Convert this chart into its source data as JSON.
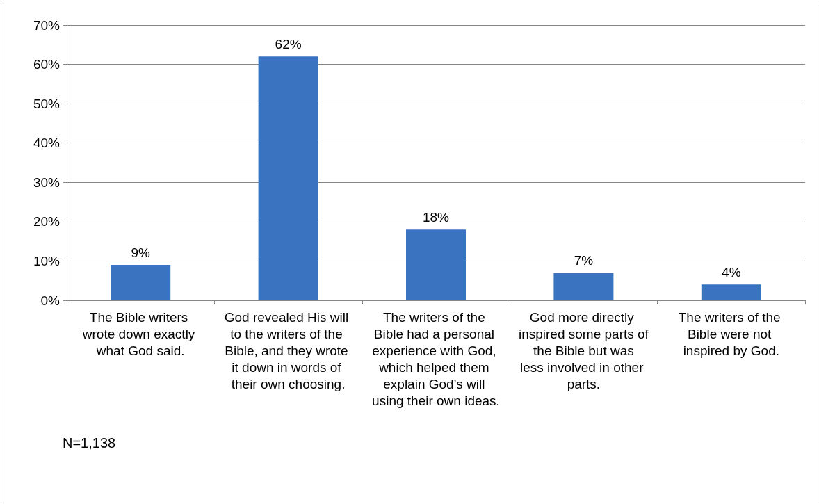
{
  "chart_data": {
    "type": "bar",
    "categories": [
      "The Bible writers wrote down exactly what God said.",
      "God revealed His will to the writers of the Bible, and they wrote it down in words of their own choosing.",
      "The writers of the Bible had a personal experience with God, which helped them explain God's will using their own ideas.",
      "God more directly inspired some parts of the Bible but was less involved in other parts.",
      "The writers of the Bible were not inspired by God."
    ],
    "values": [
      9,
      62,
      18,
      7,
      4
    ],
    "value_labels": [
      "9%",
      "62%",
      "18%",
      "7%",
      "4%"
    ],
    "color": "#3a73bf",
    "ylim": [
      0,
      70
    ],
    "yticks": [
      {
        "value": 0,
        "label": "0%"
      },
      {
        "value": 10,
        "label": "10%"
      },
      {
        "value": 20,
        "label": "20%"
      },
      {
        "value": 30,
        "label": "30%"
      },
      {
        "value": 40,
        "label": "40%"
      },
      {
        "value": 50,
        "label": "50%"
      },
      {
        "value": 60,
        "label": "60%"
      },
      {
        "value": 70,
        "label": "70%"
      }
    ],
    "grid": "y",
    "annotations": [
      "N=1,138"
    ]
  }
}
